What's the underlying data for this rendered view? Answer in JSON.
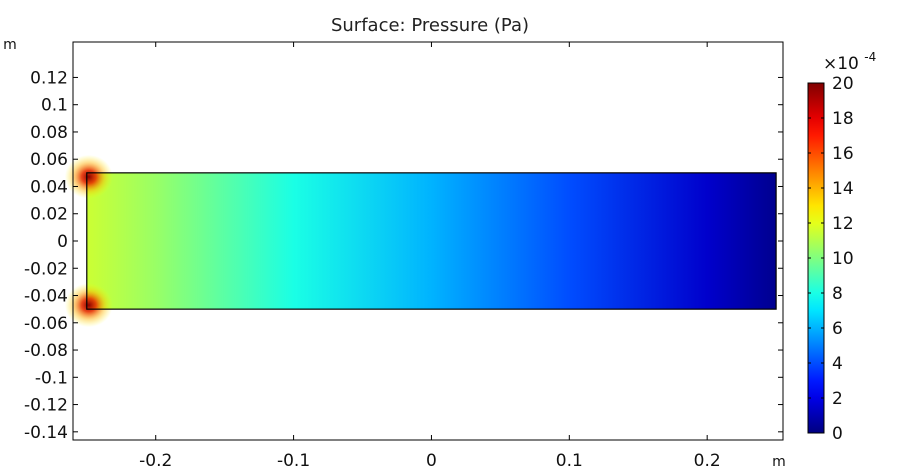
{
  "chart_data": {
    "type": "heatmap",
    "title": "Surface: Pressure (Pa)",
    "xlabel": "m",
    "ylabel": "m",
    "x_unit": "m",
    "y_unit": "m",
    "xlim": [
      -0.26,
      0.255
    ],
    "ylim": [
      -0.146,
      0.146
    ],
    "x_ticks": [
      -0.2,
      -0.1,
      0,
      0.1,
      0.2
    ],
    "x_tick_labels": [
      "-0.2",
      "-0.1",
      "0",
      "0.1",
      "0.2"
    ],
    "y_ticks": [
      0.12,
      0.1,
      0.08,
      0.06,
      0.04,
      0.02,
      0,
      -0.02,
      -0.04,
      -0.06,
      -0.08,
      -0.1,
      -0.12,
      -0.14
    ],
    "y_tick_labels": [
      "0.12",
      "0.1",
      "0.08",
      "0.06",
      "0.04",
      "0.02",
      "0",
      "-0.02",
      "-0.04",
      "-0.06",
      "-0.08",
      "-0.1",
      "-0.12",
      "-0.14"
    ],
    "domain": {
      "x": [
        -0.25,
        0.25
      ],
      "y": [
        -0.05,
        0.05
      ]
    },
    "pressure_profile": {
      "x": [
        -0.25,
        -0.2,
        -0.1,
        0,
        0.1,
        0.2,
        0.25
      ],
      "value_x1e4": [
        11.5,
        10.5,
        8,
        6,
        4,
        1.5,
        0.3
      ]
    },
    "corner_hotspots": [
      {
        "x": -0.25,
        "y": 0.05,
        "value_x1e4": 17
      },
      {
        "x": -0.25,
        "y": -0.05,
        "value_x1e4": 18
      }
    ],
    "colorbar": {
      "colormap": "jet",
      "range": [
        0,
        20
      ],
      "ticks": [
        0,
        2,
        4,
        6,
        8,
        10,
        12,
        14,
        16,
        18,
        20
      ],
      "tick_labels": [
        "0",
        "2",
        "4",
        "6",
        "8",
        "10",
        "12",
        "14",
        "16",
        "18",
        "20"
      ],
      "scale_label": "×10",
      "scale_exponent": "-4"
    },
    "grid": false,
    "colors": {
      "axis": "#000000",
      "frame": "#000000",
      "background": "#ffffff"
    }
  }
}
